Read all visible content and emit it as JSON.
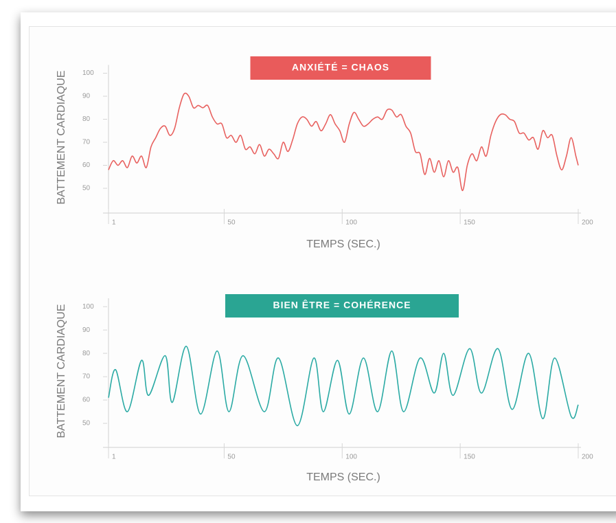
{
  "chart_data": [
    {
      "type": "line",
      "title": "ANXIÉTÉ = CHAOS",
      "title_color": "#e95b5b",
      "xlabel": "TEMPS (SEC.)",
      "ylabel": "BATTEMENT CARDIAQUE",
      "x": [
        1,
        3,
        5,
        7,
        9,
        11,
        13,
        15,
        17,
        19,
        21,
        23,
        25,
        27,
        29,
        31,
        33,
        35,
        37,
        39,
        41,
        43,
        45,
        47,
        49,
        51,
        53,
        55,
        57,
        59,
        61,
        63,
        65,
        67,
        69,
        71,
        73,
        75,
        77,
        79,
        81,
        83,
        85,
        87,
        89,
        91,
        93,
        95,
        97,
        99,
        101,
        103,
        105,
        107,
        109,
        111,
        113,
        115,
        117,
        119,
        121,
        123,
        125,
        127,
        129,
        131,
        133,
        135,
        137,
        139,
        141,
        143,
        145,
        147,
        149,
        151,
        153,
        155,
        157,
        159,
        161,
        163,
        165,
        167,
        169,
        171,
        173,
        175,
        177,
        179,
        181,
        183,
        185,
        187,
        189,
        191,
        193,
        195,
        197,
        199,
        200
      ],
      "series": [
        {
          "name": "BATTEMENT CARDIAQUE",
          "color": "#e8615f",
          "values": [
            58,
            62,
            60,
            62,
            59,
            64,
            61,
            64,
            59,
            68,
            72,
            76,
            77,
            73,
            76,
            85,
            91,
            90,
            85,
            86,
            85,
            86,
            81,
            78,
            78,
            72,
            73,
            70,
            73,
            67,
            68,
            65,
            69,
            64,
            67,
            65,
            63,
            70,
            66,
            71,
            78,
            81,
            80,
            77,
            79,
            75,
            78,
            82,
            78,
            75,
            70,
            78,
            83,
            80,
            77,
            78,
            80,
            81,
            80,
            84,
            84,
            81,
            82,
            77,
            74,
            66,
            65,
            56,
            63,
            57,
            62,
            55,
            62,
            57,
            59,
            49,
            60,
            65,
            62,
            68,
            64,
            73,
            79,
            82,
            82,
            80,
            79,
            74,
            74,
            71,
            72,
            67,
            75,
            72,
            73,
            64,
            58,
            64,
            72,
            64,
            60
          ]
        }
      ],
      "xlim": [
        1,
        200
      ],
      "xticks": [
        1,
        50,
        100,
        150,
        200
      ],
      "ylim": [
        40,
        103
      ],
      "yticks": [
        50,
        60,
        70,
        80,
        90,
        100
      ]
    },
    {
      "type": "line",
      "title": "BIEN ÊTRE = COHÉRENCE",
      "title_color": "#2aa593",
      "xlabel": "TEMPS (SEC.)",
      "ylabel": "BATTEMENT CARDIAQUE",
      "x": [
        1,
        4,
        9,
        15,
        18,
        25,
        28,
        34,
        40,
        47,
        52,
        58,
        67,
        73,
        81,
        88,
        92,
        98,
        103,
        109,
        115,
        121,
        126,
        133,
        139,
        143,
        147,
        154,
        159,
        166,
        172,
        179,
        185,
        190,
        197,
        200
      ],
      "series": [
        {
          "name": "BATTEMENT CARDIAQUE",
          "color": "#2aaaa4",
          "values": [
            61,
            73,
            55,
            77,
            62,
            79,
            59,
            83,
            54,
            81,
            55,
            79,
            55,
            78,
            49,
            78,
            55,
            77,
            54,
            78,
            55,
            81,
            55,
            78,
            63,
            80,
            62,
            82,
            63,
            82,
            56,
            80,
            52,
            78,
            53,
            58
          ]
        }
      ],
      "xlim": [
        1,
        200
      ],
      "xticks": [
        1,
        50,
        100,
        150,
        200
      ],
      "ylim": [
        40,
        103
      ],
      "yticks": [
        50,
        60,
        70,
        80,
        90,
        100
      ]
    }
  ]
}
